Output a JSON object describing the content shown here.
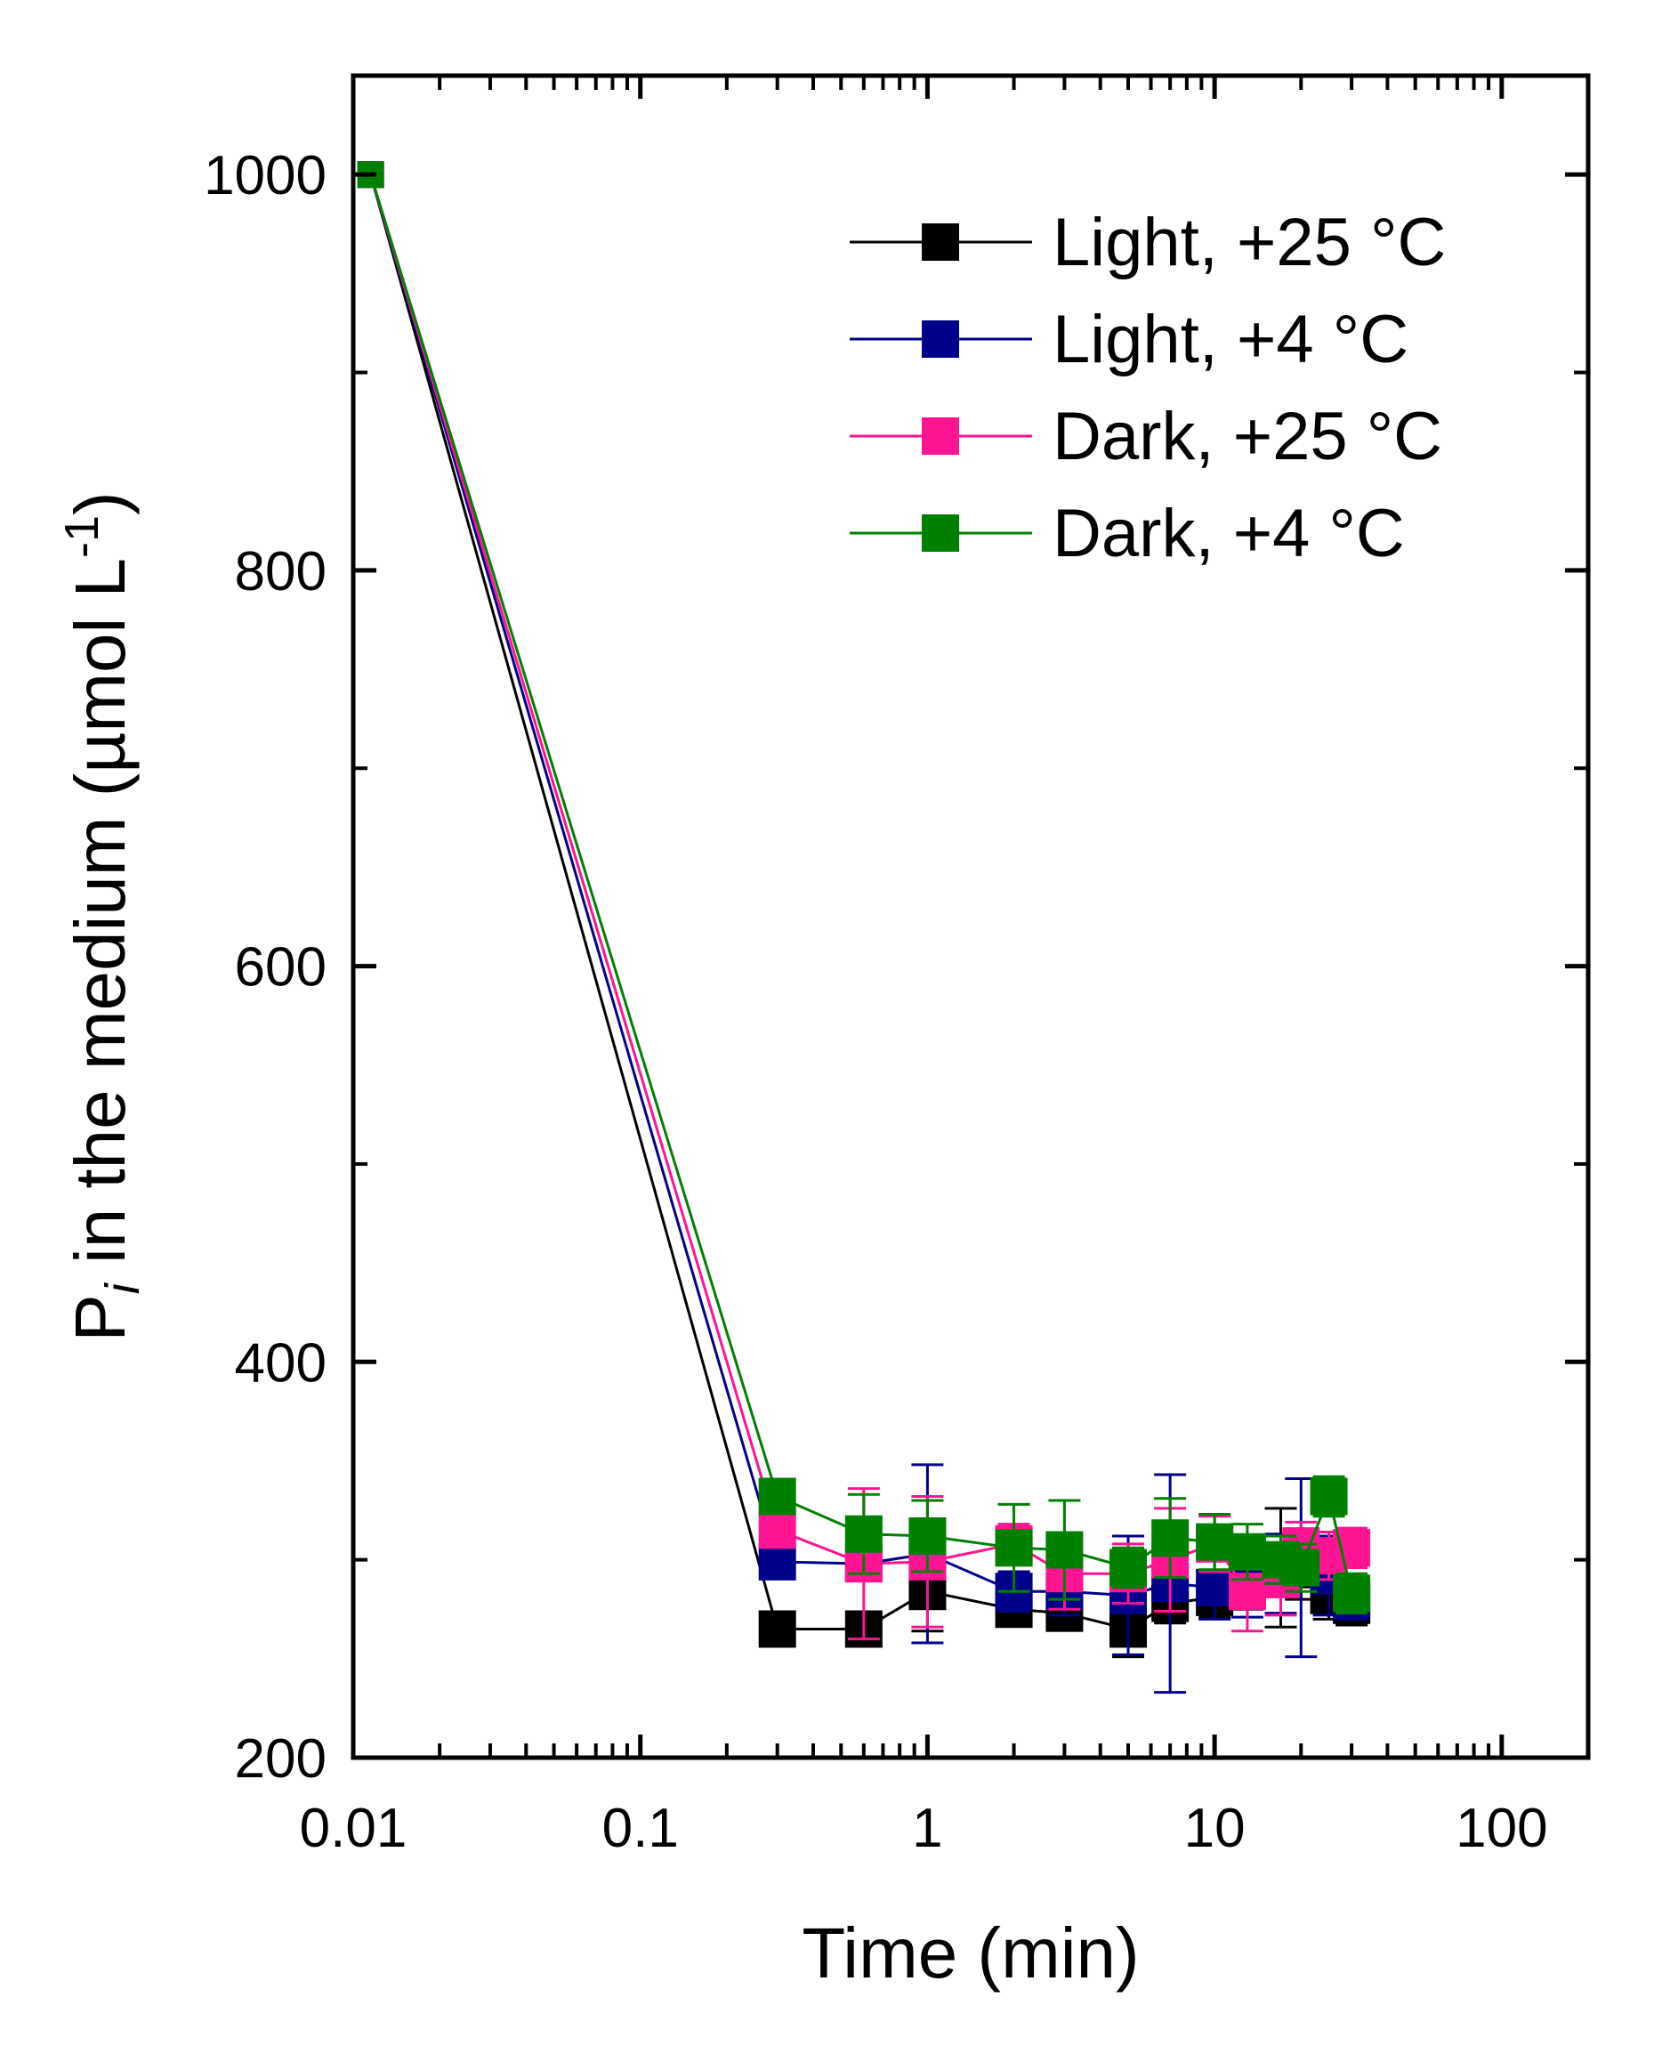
{
  "chart_data": {
    "type": "line",
    "title": "",
    "xlabel": "Time (min)",
    "ylabel": {
      "base": "P",
      "subscript": "i",
      "text": " in the medium (µmol L",
      "superscript": "-1",
      "close": ")"
    },
    "x_scale": "log",
    "xlim": [
      0.01,
      200
    ],
    "ylim": [
      200,
      1050
    ],
    "x_ticks": [
      0.01,
      0.1,
      1,
      10,
      100
    ],
    "x_tick_labels": [
      "0.01",
      "0.1",
      "1",
      "10",
      "100"
    ],
    "y_ticks": [
      200,
      400,
      600,
      800,
      1000
    ],
    "y_tick_labels": [
      "200",
      "400",
      "600",
      "800",
      "1000"
    ],
    "y_minor_ticks": [
      300,
      500,
      700,
      900
    ],
    "grid": false,
    "legend_position": "top-right",
    "x": [
      0.0115,
      0.3,
      0.6,
      1,
      2,
      3,
      5,
      7,
      10,
      13,
      17,
      20,
      25,
      30
    ],
    "series": [
      {
        "name": "Light, +25 °C",
        "color": "#000000",
        "values": [
          1000,
          265,
          265,
          284,
          275,
          273,
          265,
          278,
          281,
          285,
          296,
          295,
          282,
          277
        ],
        "errors": [
          0,
          0,
          0,
          20,
          5,
          6,
          14,
          10,
          10,
          10,
          30,
          15,
          12,
          10
        ]
      },
      {
        "name": "Light, +4 °C",
        "color": "#00008b",
        "values": [
          1000,
          299,
          298,
          303,
          284,
          284,
          282,
          288,
          286,
          289,
          293,
          296,
          292,
          280
        ],
        "errors": [
          0,
          5,
          5,
          45,
          10,
          12,
          30,
          55,
          16,
          18,
          20,
          45,
          20,
          10
        ]
      },
      {
        "name": "Dark, +25 °C",
        "color": "#ff1493",
        "values": [
          1000,
          315,
          298,
          299,
          308,
          293,
          293,
          300,
          308,
          284,
          290,
          307,
          302,
          306
        ],
        "errors": [
          0,
          5,
          38,
          33,
          10,
          18,
          15,
          26,
          14,
          20,
          18,
          12,
          12,
          10
        ]
      },
      {
        "name": "Dark, +4 °C",
        "color": "#008000",
        "values": [
          1000,
          332,
          313,
          312,
          306,
          305,
          296,
          311,
          309,
          304,
          300,
          296,
          332,
          283
        ],
        "errors": [
          0,
          5,
          20,
          18,
          22,
          25,
          10,
          20,
          14,
          14,
          12,
          12,
          10,
          10
        ]
      }
    ]
  }
}
